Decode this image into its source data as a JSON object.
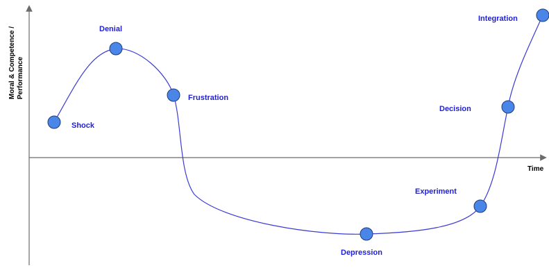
{
  "axes": {
    "y_label_line1": "Moral & Competence /",
    "y_label_line2": "Performance",
    "x_label": "Time"
  },
  "colors": {
    "label": "#1f1fd6",
    "curve": "#3a3ad8",
    "point_fill": "#4a86e8",
    "point_stroke": "#1f3b7a",
    "axis": "#6b6b6b"
  },
  "stages": [
    {
      "id": "shock",
      "label": "Shock"
    },
    {
      "id": "denial",
      "label": "Denial"
    },
    {
      "id": "frustration",
      "label": "Frustration"
    },
    {
      "id": "depression",
      "label": "Depression"
    },
    {
      "id": "experiment",
      "label": "Experiment"
    },
    {
      "id": "decision",
      "label": "Decision"
    },
    {
      "id": "integration",
      "label": "Integration"
    }
  ]
}
